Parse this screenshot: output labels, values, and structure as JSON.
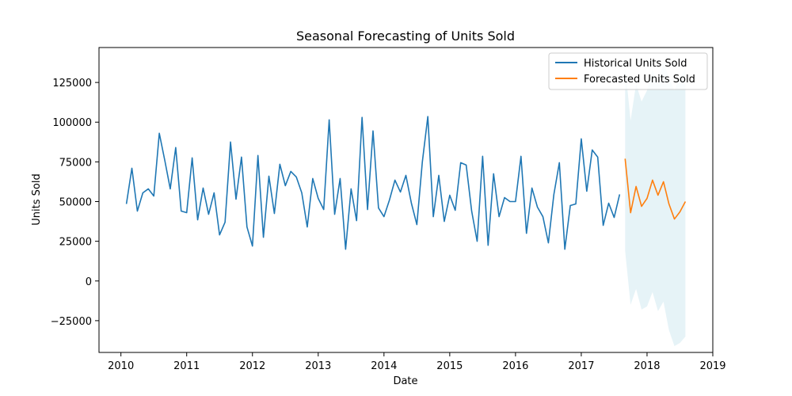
{
  "chart_data": {
    "type": "line",
    "title": "Seasonal Forecasting of Units Sold",
    "xlabel": "Date",
    "ylabel": "Units Sold",
    "xlim": [
      "2009-09-01",
      "2019-01-01"
    ],
    "ylim": [
      -45000,
      147000
    ],
    "x_ticks": [
      "2010",
      "2011",
      "2012",
      "2013",
      "2014",
      "2015",
      "2016",
      "2017",
      "2018",
      "2019"
    ],
    "y_ticks": [
      125000,
      100000,
      75000,
      50000,
      25000,
      0,
      -25000
    ],
    "y_tick_labels": [
      "125000",
      "100000",
      "75000",
      "50000",
      "25000",
      "0",
      "−25000"
    ],
    "grid": false,
    "legend": {
      "position": "top-right"
    },
    "series": [
      {
        "name": "Historical Units Sold",
        "color": "#1f77b4",
        "x": [
          "2010-02",
          "2010-03",
          "2010-04",
          "2010-05",
          "2010-06",
          "2010-07",
          "2010-08",
          "2010-09",
          "2010-10",
          "2010-11",
          "2010-12",
          "2011-01",
          "2011-02",
          "2011-03",
          "2011-04",
          "2011-05",
          "2011-06",
          "2011-07",
          "2011-08",
          "2011-09",
          "2011-10",
          "2011-11",
          "2011-12",
          "2012-01",
          "2012-02",
          "2012-03",
          "2012-04",
          "2012-05",
          "2012-06",
          "2012-07",
          "2012-08",
          "2012-09",
          "2012-10",
          "2012-11",
          "2012-12",
          "2013-01",
          "2013-02",
          "2013-03",
          "2013-04",
          "2013-05",
          "2013-06",
          "2013-07",
          "2013-08",
          "2013-09",
          "2013-10",
          "2013-11",
          "2013-12",
          "2014-01",
          "2014-02",
          "2014-03",
          "2014-04",
          "2014-05",
          "2014-06",
          "2014-07",
          "2014-08",
          "2014-09",
          "2014-10",
          "2014-11",
          "2014-12",
          "2015-01",
          "2015-02",
          "2015-03",
          "2015-04",
          "2015-05",
          "2015-06",
          "2015-07",
          "2015-08",
          "2015-09",
          "2015-10",
          "2015-11",
          "2015-12",
          "2016-01",
          "2016-02",
          "2016-03",
          "2016-04",
          "2016-05",
          "2016-06",
          "2016-07",
          "2016-08",
          "2016-09",
          "2016-10",
          "2016-11",
          "2016-12",
          "2017-01",
          "2017-02",
          "2017-03",
          "2017-04",
          "2017-05",
          "2017-06",
          "2017-07",
          "2017-08"
        ],
        "values": [
          48500,
          71000,
          44000,
          55500,
          58000,
          53500,
          93000,
          76000,
          58000,
          84000,
          44000,
          43000,
          77500,
          38500,
          58500,
          42000,
          55500,
          29000,
          37000,
          87500,
          51500,
          78000,
          34000,
          22000,
          79000,
          27500,
          66000,
          42500,
          73500,
          60000,
          69000,
          65500,
          55500,
          34000,
          64500,
          52000,
          45000,
          101500,
          42000,
          64500,
          20000,
          58000,
          38000,
          103000,
          45000,
          94500,
          46000,
          40500,
          51000,
          63500,
          56000,
          66500,
          49000,
          35500,
          75000,
          103500,
          40500,
          66500,
          37500,
          54000,
          44500,
          74500,
          73000,
          44000,
          25000,
          78500,
          22500,
          67500,
          40500,
          52500,
          50000,
          50000,
          78500,
          30000,
          58500,
          46500,
          40500,
          24000,
          54500,
          74500,
          20000,
          47500,
          48500,
          89500,
          56500,
          82500,
          78000,
          35000,
          49000,
          40000,
          54500
        ]
      },
      {
        "name": "Forecasted Units Sold",
        "color": "#ff7f0e",
        "x": [
          "2017-09",
          "2017-10",
          "2017-11",
          "2017-12",
          "2018-01",
          "2018-02",
          "2018-03",
          "2018-04",
          "2018-05",
          "2018-06",
          "2018-07",
          "2018-08"
        ],
        "values": [
          77000,
          43000,
          59500,
          47000,
          52000,
          63500,
          54000,
          62500,
          48500,
          39000,
          43500,
          50000
        ]
      }
    ],
    "confidence_band": {
      "color": "#add8e6",
      "x": [
        "2017-09",
        "2017-10",
        "2017-11",
        "2017-12",
        "2018-01",
        "2018-02",
        "2018-03",
        "2018-04",
        "2018-05",
        "2018-06",
        "2018-07",
        "2018-08"
      ],
      "upper": [
        135000,
        101000,
        124000,
        113000,
        120000,
        133000,
        125000,
        138000,
        128000,
        120000,
        128000,
        134000
      ],
      "lower": [
        19000,
        -15000,
        -5000,
        -18000,
        -16000,
        -7000,
        -19000,
        -13000,
        -31000,
        -41000,
        -39000,
        -35000
      ]
    }
  }
}
